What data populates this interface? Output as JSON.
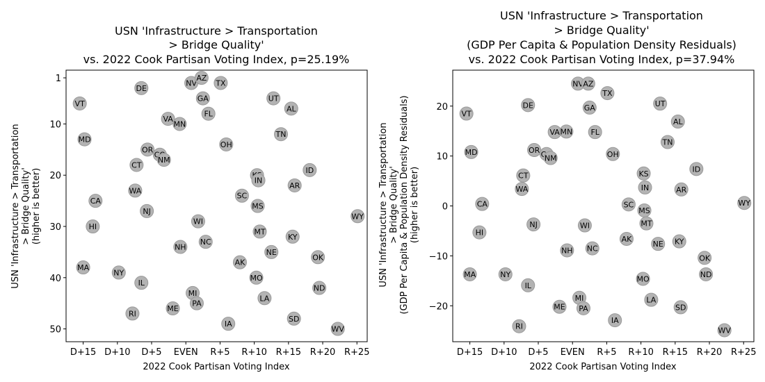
{
  "chart_data": [
    {
      "type": "scatter",
      "title": [
        "USN 'Infrastructure > Transportation",
        "> Bridge Quality'",
        "vs. 2022 Cook Partisan Voting Index, p=25.19%"
      ],
      "xlabel": "2022 Cook Partisan Voting Index",
      "ylabel": [
        "USN 'Infrastructure > Transportation",
        "> Bridge Quality'",
        "(higher is better)"
      ],
      "x_ticks": [
        "D+15",
        "D+10",
        "D+5",
        "EVEN",
        "R+5",
        "R+10",
        "R+15",
        "R+20",
        "R+25"
      ],
      "x_tick_values": [
        -15,
        -10,
        -5,
        0,
        5,
        10,
        15,
        20,
        25
      ],
      "y_ticks": [
        "1",
        "10",
        "20",
        "30",
        "40",
        "50"
      ],
      "y_tick_values": [
        1,
        10,
        20,
        30,
        40,
        50
      ],
      "xlim": [
        -17.5,
        26.5
      ],
      "ylim": [
        52.5,
        -0.5
      ],
      "y_inverted": true,
      "marker_color": "#b3b3b3",
      "marker_edge": "#999999",
      "points": [
        {
          "label": "VT",
          "x": -15.5,
          "y": 6
        },
        {
          "label": "MD",
          "x": -14.8,
          "y": 13
        },
        {
          "label": "CA",
          "x": -13.2,
          "y": 25
        },
        {
          "label": "HI",
          "x": -13.6,
          "y": 30
        },
        {
          "label": "MA",
          "x": -15,
          "y": 38
        },
        {
          "label": "NY",
          "x": -9.8,
          "y": 39
        },
        {
          "label": "DE",
          "x": -6.5,
          "y": 3
        },
        {
          "label": "CT",
          "x": -7.2,
          "y": 18
        },
        {
          "label": "WA",
          "x": -7.4,
          "y": 23
        },
        {
          "label": "IL",
          "x": -6.5,
          "y": 41
        },
        {
          "label": "RI",
          "x": -7.8,
          "y": 47
        },
        {
          "label": "OR",
          "x": -5.6,
          "y": 15
        },
        {
          "label": "NJ",
          "x": -5.7,
          "y": 27
        },
        {
          "label": "CO",
          "x": -3.8,
          "y": 16
        },
        {
          "label": "NM",
          "x": -3.2,
          "y": 17
        },
        {
          "label": "VA",
          "x": -2.6,
          "y": 9
        },
        {
          "label": "MN",
          "x": -0.9,
          "y": 10
        },
        {
          "label": "ME",
          "x": -1.9,
          "y": 46
        },
        {
          "label": "NH",
          "x": -0.8,
          "y": 34
        },
        {
          "label": "NV",
          "x": 0.8,
          "y": 2
        },
        {
          "label": "AZ",
          "x": 2.3,
          "y": 1
        },
        {
          "label": "GA",
          "x": 2.5,
          "y": 5
        },
        {
          "label": "FL",
          "x": 3.3,
          "y": 8
        },
        {
          "label": "WI",
          "x": 1.8,
          "y": 29
        },
        {
          "label": "NC",
          "x": 2.9,
          "y": 33
        },
        {
          "label": "MI",
          "x": 1,
          "y": 43
        },
        {
          "label": "PA",
          "x": 1.6,
          "y": 45
        },
        {
          "label": "TX",
          "x": 5.1,
          "y": 2
        },
        {
          "label": "OH",
          "x": 5.9,
          "y": 14
        },
        {
          "label": "IA",
          "x": 6.2,
          "y": 49
        },
        {
          "label": "SC",
          "x": 8.2,
          "y": 24
        },
        {
          "label": "AK",
          "x": 7.9,
          "y": 37
        },
        {
          "label": "KS",
          "x": 10.4,
          "y": 20
        },
        {
          "label": "IN",
          "x": 10.6,
          "y": 21
        },
        {
          "label": "MS",
          "x": 10.5,
          "y": 26
        },
        {
          "label": "MT",
          "x": 10.8,
          "y": 31
        },
        {
          "label": "MO",
          "x": 10.3,
          "y": 40
        },
        {
          "label": "LA",
          "x": 11.5,
          "y": 44
        },
        {
          "label": "NE",
          "x": 12.5,
          "y": 35
        },
        {
          "label": "UT",
          "x": 12.8,
          "y": 5
        },
        {
          "label": "TN",
          "x": 13.9,
          "y": 12
        },
        {
          "label": "AL",
          "x": 15.4,
          "y": 7
        },
        {
          "label": "KY",
          "x": 15.6,
          "y": 32
        },
        {
          "label": "AR",
          "x": 15.9,
          "y": 22
        },
        {
          "label": "SD",
          "x": 15.8,
          "y": 48
        },
        {
          "label": "ID",
          "x": 18.1,
          "y": 19
        },
        {
          "label": "OK",
          "x": 19.3,
          "y": 36
        },
        {
          "label": "ND",
          "x": 19.5,
          "y": 42
        },
        {
          "label": "WV",
          "x": 22.2,
          "y": 50
        },
        {
          "label": "WY",
          "x": 25.1,
          "y": 28
        }
      ]
    },
    {
      "type": "scatter",
      "title": [
        "USN 'Infrastructure > Transportation",
        "> Bridge Quality'",
        "(GDP Per Capita & Population Density Residuals)",
        "vs. 2022 Cook Partisan Voting Index, p=37.94%"
      ],
      "xlabel": "2022 Cook Partisan Voting Index",
      "ylabel": [
        "USN 'Infrastructure > Transportation",
        "> Bridge Quality'",
        "(GDP Per Capita & Population Density Residuals)",
        "(higher is better)"
      ],
      "x_ticks": [
        "D+15",
        "D+10",
        "D+5",
        "EVEN",
        "R+5",
        "R+10",
        "R+15",
        "R+20",
        "R+25"
      ],
      "x_tick_values": [
        -15,
        -10,
        -5,
        0,
        5,
        10,
        15,
        20,
        25
      ],
      "y_ticks": [
        "20",
        "10",
        "0",
        "−10",
        "−20"
      ],
      "y_tick_values": [
        20,
        10,
        0,
        -10,
        -20
      ],
      "xlim": [
        -17.5,
        26.5
      ],
      "ylim": [
        -27.2,
        27.2
      ],
      "y_inverted": false,
      "marker_color": "#b3b3b3",
      "marker_edge": "#999999",
      "points": [
        {
          "label": "VT",
          "x": -15.5,
          "y": 18.5
        },
        {
          "label": "MD",
          "x": -14.8,
          "y": 10.8
        },
        {
          "label": "CA",
          "x": -13.2,
          "y": 0.4
        },
        {
          "label": "HI",
          "x": -13.6,
          "y": -5.3
        },
        {
          "label": "MA",
          "x": -15,
          "y": -13.7
        },
        {
          "label": "NY",
          "x": -9.8,
          "y": -13.7
        },
        {
          "label": "DE",
          "x": -6.5,
          "y": 20.2
        },
        {
          "label": "CT",
          "x": -7.2,
          "y": 6.1
        },
        {
          "label": "WA",
          "x": -7.4,
          "y": 3.4
        },
        {
          "label": "IL",
          "x": -6.5,
          "y": -15.9
        },
        {
          "label": "RI",
          "x": -7.8,
          "y": -24.1
        },
        {
          "label": "OR",
          "x": -5.6,
          "y": 11.2
        },
        {
          "label": "NJ",
          "x": -5.7,
          "y": -3.7
        },
        {
          "label": "CO",
          "x": -3.8,
          "y": 10.4
        },
        {
          "label": "NM",
          "x": -3.2,
          "y": 9.6
        },
        {
          "label": "VA",
          "x": -2.6,
          "y": 14.8
        },
        {
          "label": "MN",
          "x": -0.9,
          "y": 14.9
        },
        {
          "label": "ME",
          "x": -1.9,
          "y": -20.2
        },
        {
          "label": "NH",
          "x": -0.8,
          "y": -8.9
        },
        {
          "label": "NV",
          "x": 0.8,
          "y": 24.5
        },
        {
          "label": "AZ",
          "x": 2.3,
          "y": 24.5
        },
        {
          "label": "GA",
          "x": 2.5,
          "y": 19.7
        },
        {
          "label": "FL",
          "x": 3.3,
          "y": 14.8
        },
        {
          "label": "WI",
          "x": 1.8,
          "y": -3.9
        },
        {
          "label": "NC",
          "x": 2.9,
          "y": -8.5
        },
        {
          "label": "MI",
          "x": 1,
          "y": -18.4
        },
        {
          "label": "PA",
          "x": 1.6,
          "y": -20.5
        },
        {
          "label": "TX",
          "x": 5.1,
          "y": 22.6
        },
        {
          "label": "OH",
          "x": 5.9,
          "y": 10.4
        },
        {
          "label": "IA",
          "x": 6.2,
          "y": -22.9
        },
        {
          "label": "SC",
          "x": 8.2,
          "y": 0.3
        },
        {
          "label": "AK",
          "x": 7.9,
          "y": -6.6
        },
        {
          "label": "KS",
          "x": 10.4,
          "y": 6.5
        },
        {
          "label": "IN",
          "x": 10.6,
          "y": 3.7
        },
        {
          "label": "MS",
          "x": 10.5,
          "y": -0.9
        },
        {
          "label": "MT",
          "x": 10.8,
          "y": -3.5
        },
        {
          "label": "MO",
          "x": 10.3,
          "y": -14.6
        },
        {
          "label": "LA",
          "x": 11.5,
          "y": -18.8
        },
        {
          "label": "NE",
          "x": 12.5,
          "y": -7.6
        },
        {
          "label": "UT",
          "x": 12.8,
          "y": 20.5
        },
        {
          "label": "TN",
          "x": 13.9,
          "y": 12.8
        },
        {
          "label": "AL",
          "x": 15.4,
          "y": 16.9
        },
        {
          "label": "KY",
          "x": 15.6,
          "y": -7.1
        },
        {
          "label": "AR",
          "x": 15.9,
          "y": 3.3
        },
        {
          "label": "SD",
          "x": 15.8,
          "y": -20.3
        },
        {
          "label": "ID",
          "x": 18.1,
          "y": 7.4
        },
        {
          "label": "OK",
          "x": 19.3,
          "y": -10.4
        },
        {
          "label": "ND",
          "x": 19.5,
          "y": -13.7
        },
        {
          "label": "WV",
          "x": 22.2,
          "y": -24.9
        },
        {
          "label": "WY",
          "x": 25.1,
          "y": 0.6
        }
      ]
    }
  ]
}
